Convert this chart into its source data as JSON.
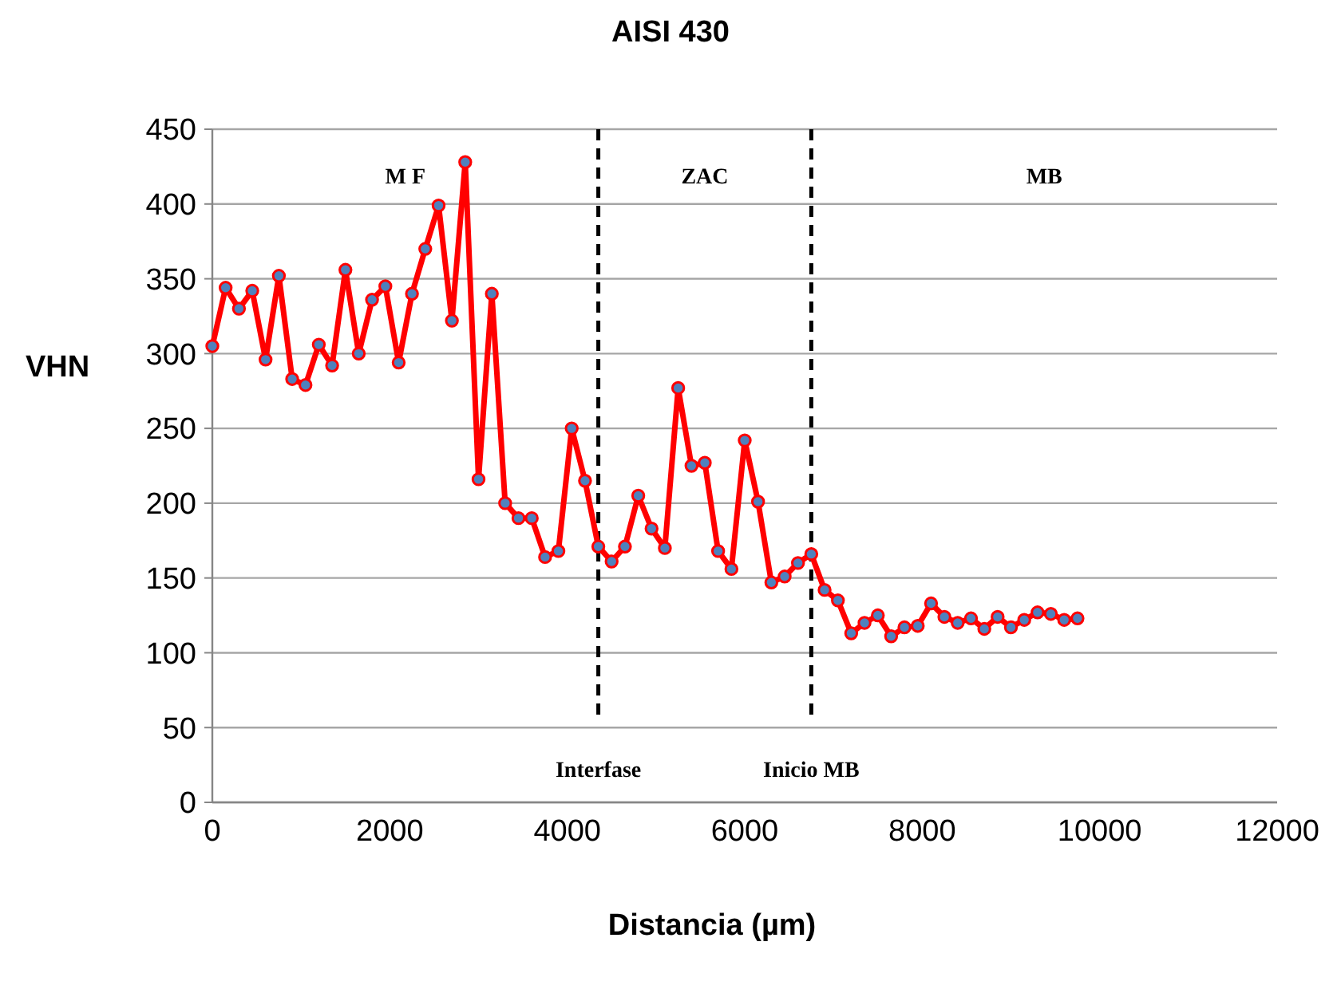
{
  "chart_data": {
    "type": "line",
    "title": "AISI 430",
    "xlabel": "Distancia (µm)",
    "ylabel": "VHN",
    "x": [
      0,
      150,
      300,
      450,
      600,
      750,
      900,
      1050,
      1200,
      1350,
      1500,
      1650,
      1800,
      1950,
      2100,
      2250,
      2400,
      2550,
      2700,
      2850,
      3000,
      3150,
      3300,
      3450,
      3600,
      3750,
      3900,
      4050,
      4200,
      4350,
      4500,
      4650,
      4800,
      4950,
      5100,
      5250,
      5400,
      5550,
      5700,
      5850,
      6000,
      6150,
      6300,
      6450,
      6600,
      6750,
      6900,
      7050,
      7200,
      7350,
      7500,
      7650,
      7800,
      7950,
      8100,
      8250,
      8400,
      8550,
      8700,
      8850,
      9000,
      9150,
      9300,
      9450,
      9600,
      9750
    ],
    "series": [
      {
        "color": "#ff0000",
        "values": [
          305,
          344,
          330,
          342,
          296,
          352,
          283,
          279,
          306,
          292,
          356,
          300,
          336,
          345,
          294,
          340,
          370,
          399,
          322,
          428,
          216,
          340,
          200,
          190,
          190,
          164,
          168,
          250,
          215,
          171,
          161,
          171,
          205,
          183,
          170,
          277,
          225,
          227,
          168,
          156,
          242,
          201,
          147,
          151,
          160,
          166,
          142,
          135,
          113,
          120,
          125,
          111,
          117,
          118,
          133,
          124,
          120,
          123,
          116,
          124,
          117,
          122,
          127,
          126,
          122,
          123
        ]
      }
    ],
    "xlim": [
      0,
      12000
    ],
    "xticks": [
      0,
      2000,
      4000,
      6000,
      8000,
      10000,
      12000
    ],
    "ylim": [
      0,
      450
    ],
    "yticks": [
      0,
      50,
      100,
      150,
      200,
      250,
      300,
      350,
      400,
      450
    ],
    "grid": "y",
    "marker": "circle",
    "line_style": "solid",
    "ref_lines": [
      {
        "axis": "x",
        "value": 4350,
        "label": "Interfase",
        "color": "#000000",
        "line_style": "dashed"
      },
      {
        "axis": "x",
        "value": 6750,
        "label": "Inicio MB",
        "color": "#000000",
        "line_style": "dashed"
      }
    ],
    "annotations": [
      "M F",
      "ZAC",
      "MB"
    ]
  }
}
